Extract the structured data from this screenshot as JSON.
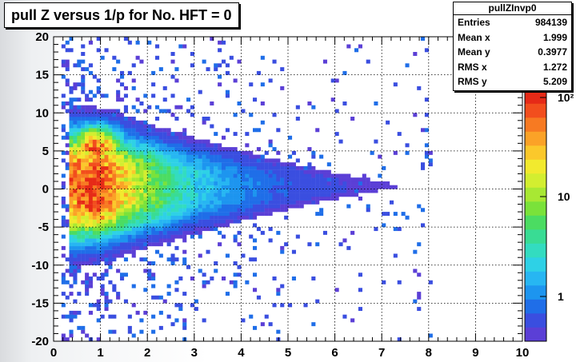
{
  "title": "pull Z versus 1/p for No. HFT = 0",
  "stats": {
    "name": "pullZInvp0",
    "rows": [
      {
        "label": "Entries",
        "value": "984139"
      },
      {
        "label": "Mean x",
        "value": "1.999"
      },
      {
        "label": "Mean y",
        "value": "0.3977"
      },
      {
        "label": "RMS x",
        "value": "1.272"
      },
      {
        "label": "RMS y",
        "value": "5.209"
      }
    ]
  },
  "chart_data": {
    "type": "heatmap",
    "title": "pull Z versus 1/p for No. HFT = 0",
    "xlabel": "",
    "ylabel": "",
    "xlim": [
      0,
      10
    ],
    "ylim": [
      -20,
      20
    ],
    "x_ticks": [
      "0",
      "1",
      "2",
      "3",
      "4",
      "5",
      "6",
      "7",
      "8",
      "9",
      "10"
    ],
    "y_ticks": [
      "-20",
      "-15",
      "-10",
      "-5",
      "0",
      "5",
      "10",
      "15",
      "20"
    ],
    "grid": true,
    "z_scale": "log",
    "z_ticks": [
      "1",
      "10",
      "10²"
    ],
    "palette": [
      "#5b3fd6",
      "#3a4ee0",
      "#1f6ee8",
      "#1d95ef",
      "#27b6f2",
      "#2ed1e6",
      "#33dcc0",
      "#39dc94",
      "#4bdc62",
      "#7ae23a",
      "#a8e833",
      "#d3ee30",
      "#f2ea2e",
      "#fbc82b",
      "#fba227",
      "#f77a22",
      "#f24e1d",
      "#e62a17"
    ],
    "distribution": "wedge: dense core near 1/p 0.5-1.5 spanning y about -10 to 10, narrowing to y near 0 at 1/p about 7.5; sparse outliers across full y range out to 1/p about 8"
  }
}
